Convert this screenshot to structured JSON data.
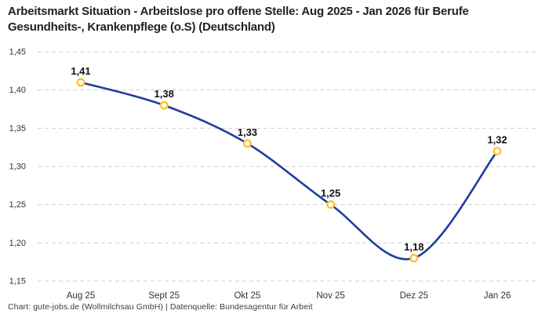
{
  "title": "Arbeitsmarkt Situation - Arbeitslose pro offene Stelle: Aug 2025 - Jan 2026 für Berufe Gesundheits-, Krankenpflege (o.S) (Deutschland)",
  "footer": "Chart: gute-jobs.de (Wollmilchsau GmbH) | Datenquelle: Bundesagentur für Arbeit",
  "chart_data": {
    "type": "line",
    "title": "Arbeitsmarkt Situation - Arbeitslose pro offene Stelle: Aug 2025 - Jan 2026 für Berufe Gesundheits-, Krankenpflege (o.S) (Deutschland)",
    "categories": [
      "Aug 25",
      "Sept 25",
      "Okt 25",
      "Nov 25",
      "Dez 25",
      "Jan 26"
    ],
    "values": [
      1.41,
      1.38,
      1.33,
      1.25,
      1.18,
      1.32
    ],
    "data_labels": [
      "1,41",
      "1,38",
      "1,33",
      "1,25",
      "1,18",
      "1,32"
    ],
    "y_ticks": [
      {
        "label": "1,45",
        "value": 1.45
      },
      {
        "label": "1,40",
        "value": 1.4
      },
      {
        "label": "1,35",
        "value": 1.35
      },
      {
        "label": "1,30",
        "value": 1.3
      },
      {
        "label": "1,25",
        "value": 1.25
      },
      {
        "label": "1,20",
        "value": 1.2
      },
      {
        "label": "1,15",
        "value": 1.15
      }
    ],
    "ylim": [
      1.15,
      1.45
    ],
    "xlabel": "",
    "ylabel": "",
    "legend": "none",
    "grid": "horizontal-dashed",
    "curve": "smooth",
    "colors": {
      "line": "#1f3da0",
      "marker_stroke": "#fcc331",
      "marker_fill": "#ffffff",
      "grid": "#cfcfcf",
      "tick_text": "#333333",
      "data_label_text": "#111111"
    }
  }
}
